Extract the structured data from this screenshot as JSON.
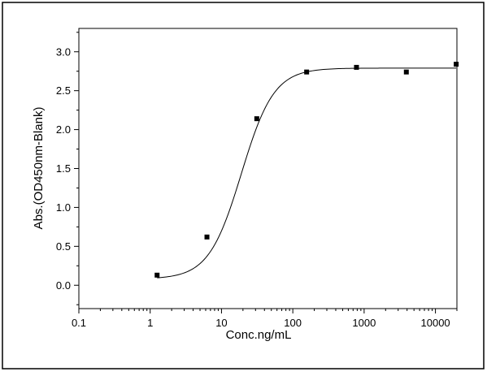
{
  "chart_data": {
    "type": "scatter",
    "title": "",
    "xlabel": "Conc.ng/mL",
    "ylabel": "Abs.(OD450nm-Blank)",
    "xscale": "log",
    "xlim": [
      0.1,
      20000
    ],
    "ylim": [
      -0.3,
      3.3
    ],
    "x_ticks": [
      0.1,
      1,
      10,
      100,
      1000,
      10000
    ],
    "x_tick_labels": [
      "0.1",
      "1",
      "10",
      "100",
      "1000",
      "10000"
    ],
    "y_ticks": [
      0.0,
      0.5,
      1.0,
      1.5,
      2.0,
      2.5,
      3.0
    ],
    "y_tick_labels": [
      "0.0",
      "0.5",
      "1.0",
      "1.5",
      "2.0",
      "2.5",
      "3.0"
    ],
    "grid": false,
    "legend": "none",
    "series": [
      {
        "marker": "square",
        "color": "#000000",
        "x": [
          1.25,
          6.25,
          31.25,
          156.25,
          781.25,
          3906.25,
          19531.25
        ],
        "y": [
          0.13,
          0.62,
          2.14,
          2.74,
          2.8,
          2.74,
          2.84
        ]
      }
    ],
    "fit_curve": {
      "model": "4PL",
      "color": "#000000",
      "bottom": 0.08,
      "top": 2.79,
      "ec50": 19,
      "hill": 1.9
    }
  }
}
